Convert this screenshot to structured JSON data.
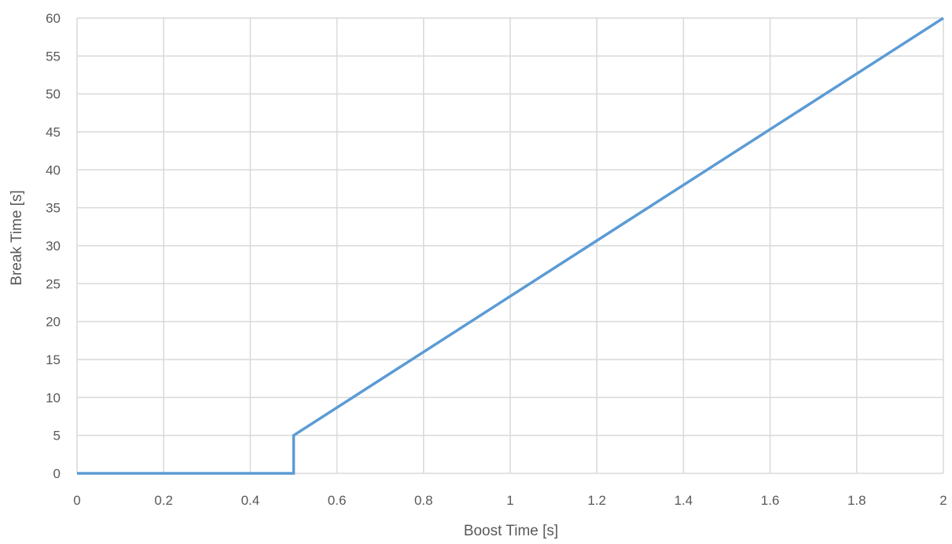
{
  "chart_data": {
    "type": "line",
    "title": "",
    "xlabel": "Boost Time [s]",
    "ylabel": "Break Time [s]",
    "xlim": [
      0,
      2
    ],
    "ylim": [
      0,
      60
    ],
    "grid": true,
    "legend": "none",
    "x_ticks": [
      "0",
      "0.2",
      "0.4",
      "0.6",
      "0.8",
      "1",
      "1.2",
      "1.4",
      "1.6",
      "1.8",
      "2"
    ],
    "y_ticks": [
      "0",
      "5",
      "10",
      "15",
      "20",
      "25",
      "30",
      "35",
      "40",
      "45",
      "50",
      "55",
      "60"
    ],
    "series": [
      {
        "color": "#5b9bd5",
        "points": [
          {
            "x": 0,
            "y": 0
          },
          {
            "x": 0.5,
            "y": 0
          },
          {
            "x": 0.5,
            "y": 5
          },
          {
            "x": 2,
            "y": 60
          }
        ]
      }
    ]
  }
}
